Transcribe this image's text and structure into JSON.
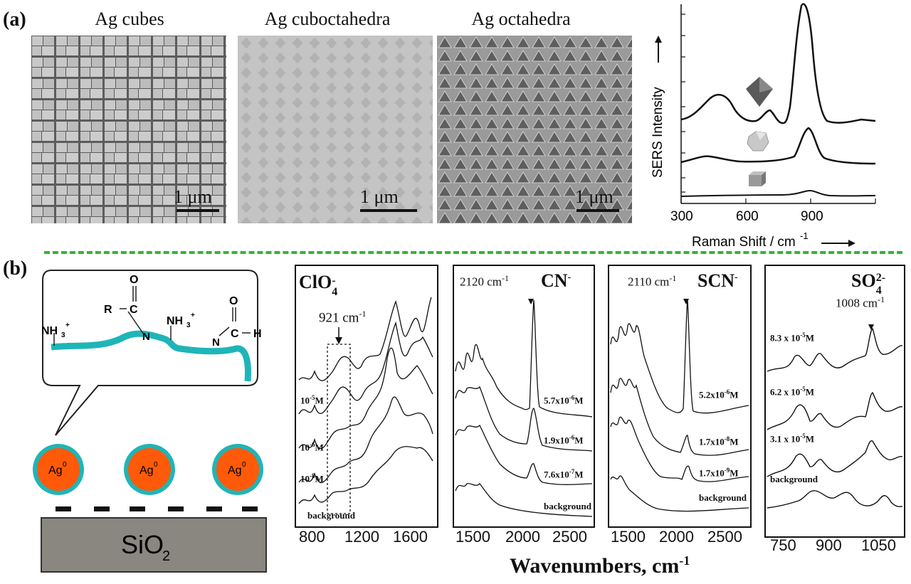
{
  "panel_a": {
    "label": "(a)",
    "sem_images": [
      {
        "title": "Ag cubes",
        "scale": "1 μm"
      },
      {
        "title": "Ag cuboctahedra",
        "scale": "1 μm"
      },
      {
        "title": "Ag octahedra",
        "scale": "1 μm"
      }
    ],
    "raman_chart": {
      "ylabel": "SERS Intensity",
      "xlabel": "Raman Shift / cm",
      "xlabel_sup": "-1",
      "xticks": [
        "300",
        "600",
        "900"
      ],
      "colors": {
        "line": "#111111"
      }
    }
  },
  "panel_b": {
    "label": "(b)",
    "schematic": {
      "group_r": "R",
      "atom_c": "C",
      "atom_o": "O",
      "atom_n": "N",
      "atom_h": "H",
      "nh3_left": "NH",
      "nh3_right": "NH",
      "sub3": "3",
      "sup_plus": "+",
      "particle": "Ag",
      "particle_sup": "0",
      "substrate": "SiO",
      "substrate_sub": "2",
      "colors": {
        "polymer": "#1fb5b8",
        "particle": "#ff5a0a",
        "substrate": "#8a8680"
      }
    },
    "spectra": [
      {
        "ion": "ClO",
        "ion_sub": "4",
        "ion_sup": "-",
        "peak": "921 cm",
        "peak_sup": "-1",
        "concentrations": [
          {
            "base": "10",
            "sup": "-5",
            "unit": "M"
          },
          {
            "base": "10",
            "sup": "-6",
            "unit": "M"
          },
          {
            "base": "10",
            "sup": "-8",
            "unit": "M"
          }
        ],
        "background": "background",
        "xticks": [
          "800",
          "1200",
          "1600"
        ]
      },
      {
        "ion": "CN",
        "ion_sup": "-",
        "peak": "2120 cm",
        "peak_sup": "-1",
        "concentrations": [
          {
            "base": "5.7x10",
            "sup": "-6",
            "unit": "M"
          },
          {
            "base": "1.9x10",
            "sup": "-6",
            "unit": "M"
          },
          {
            "base": "7.6x10",
            "sup": "-7",
            "unit": "M"
          }
        ],
        "background": "background",
        "xticks": [
          "1500",
          "2000",
          "2500"
        ]
      },
      {
        "ion": "SCN",
        "ion_sup": "-",
        "peak": "2110 cm",
        "peak_sup": "-1",
        "concentrations": [
          {
            "base": "5.2x10",
            "sup": "-6",
            "unit": "M"
          },
          {
            "base": "1.7x10",
            "sup": "-8",
            "unit": "M"
          },
          {
            "base": "1.7x10",
            "sup": "-9",
            "unit": "M"
          }
        ],
        "background": "background",
        "xticks": [
          "1500",
          "2000",
          "2500"
        ]
      },
      {
        "ion": "SO",
        "ion_sub": "4",
        "ion_sup": "2-",
        "peak": "1008 cm",
        "peak_sup": "-1",
        "concentrations": [
          {
            "base": "8.3 x 10",
            "sup": "-5",
            "unit": "M"
          },
          {
            "base": "6.2 x 10",
            "sup": "-5",
            "unit": "M"
          },
          {
            "base": "3.1 x 10",
            "sup": "-5",
            "unit": "M"
          }
        ],
        "background": "background",
        "xticks": [
          "750",
          "900",
          "1050"
        ]
      }
    ],
    "xlabel": "Wavenumbers, cm",
    "xlabel_sup": "-1"
  }
}
